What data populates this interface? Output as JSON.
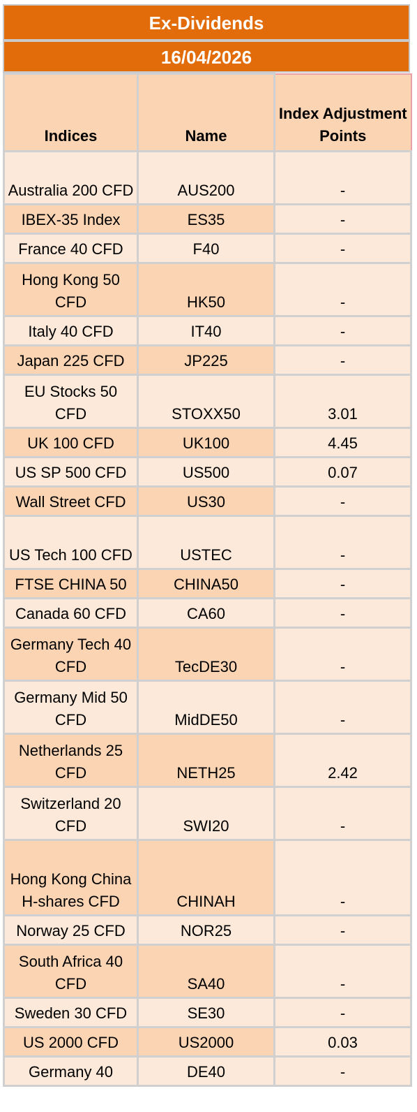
{
  "title": "Ex-Dividends",
  "date": "16/04/2026",
  "headers": {
    "indices": "Indices",
    "name": "Name",
    "points": "Index Adjustment Points"
  },
  "rows": [
    {
      "index": "Australia 200 CFD",
      "name": "AUS200",
      "points": "-"
    },
    {
      "index": "IBEX-35 Index",
      "name": "ES35",
      "points": "-"
    },
    {
      "index": "France 40 CFD",
      "name": "F40",
      "points": "-"
    },
    {
      "index": "Hong Kong 50 CFD",
      "name": "HK50",
      "points": "-"
    },
    {
      "index": "Italy 40 CFD",
      "name": "IT40",
      "points": "-"
    },
    {
      "index": "Japan 225 CFD",
      "name": "JP225",
      "points": "-"
    },
    {
      "index": "EU Stocks 50 CFD",
      "name": "STOXX50",
      "points": "3.01"
    },
    {
      "index": "UK 100 CFD",
      "name": "UK100",
      "points": "4.45"
    },
    {
      "index": "US SP 500 CFD",
      "name": "US500",
      "points": "0.07"
    },
    {
      "index": "Wall Street CFD",
      "name": "US30",
      "points": "-"
    },
    {
      "index": "US Tech 100 CFD",
      "name": "USTEC",
      "points": "-"
    },
    {
      "index": "FTSE CHINA 50",
      "name": "CHINA50",
      "points": "-"
    },
    {
      "index": "Canada 60 CFD",
      "name": "CA60",
      "points": "-"
    },
    {
      "index": "Germany Tech 40 CFD",
      "name": "TecDE30",
      "points": "-"
    },
    {
      "index": "Germany Mid 50 CFD",
      "name": "MidDE50",
      "points": "-"
    },
    {
      "index": "Netherlands 25 CFD",
      "name": "NETH25",
      "points": "2.42"
    },
    {
      "index": "Switzerland 20 CFD",
      "name": "SWI20",
      "points": "-"
    },
    {
      "index": "Hong Kong China H-shares CFD",
      "name": "CHINAH",
      "points": "-"
    },
    {
      "index": "Norway 25 CFD",
      "name": "NOR25",
      "points": "-"
    },
    {
      "index": "South Africa 40 CFD",
      "name": "SA40",
      "points": "-"
    },
    {
      "index": "Sweden 30 CFD",
      "name": "SE30",
      "points": "-"
    },
    {
      "index": "US 2000 CFD",
      "name": "US2000",
      "points": "0.03"
    },
    {
      "index": "Germany 40",
      "name": "DE40",
      "points": "-"
    }
  ]
}
